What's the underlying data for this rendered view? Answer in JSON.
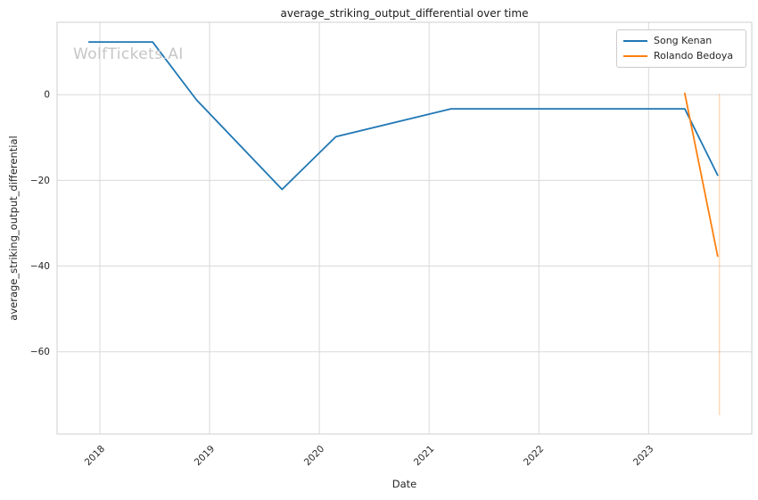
{
  "watermark": {
    "text": "WolfTickets.AI"
  },
  "chart_data": {
    "type": "line",
    "title": "average_striking_output_differential over time",
    "xlabel": "Date",
    "ylabel": "average_striking_output_differential",
    "legend_position": "upper right",
    "grid": true,
    "xlim": [
      2017.61,
      2023.94
    ],
    "ylim": [
      -79.2,
      16.9
    ],
    "xticks": [
      2018,
      2019,
      2020,
      2021,
      2022,
      2023
    ],
    "yticks": [
      0,
      -20,
      -40,
      -60
    ],
    "series": [
      {
        "name": "Song Kenan",
        "color": "#1f77b4",
        "x": [
          2017.9,
          2018.48,
          2018.88,
          2019.66,
          2020.15,
          2021.2,
          2023.33,
          2023.63
        ],
        "y": [
          12.3,
          12.3,
          -1.2,
          -22.1,
          -9.8,
          -3.3,
          -3.3,
          -18.8
        ]
      },
      {
        "name": "Rolando Bedoya",
        "color": "#ff7f0e",
        "x": [
          2023.33,
          2023.63
        ],
        "y": [
          0.3,
          -37.7
        ],
        "error_bar": {
          "x": 2023.645,
          "y_top": 0.2,
          "y_bottom": -74.8
        }
      }
    ],
    "style": {
      "grid_color": "#d9d9d9",
      "spine_color": "#cfcfcf",
      "text_color": "#262626",
      "background": "#ffffff"
    }
  }
}
